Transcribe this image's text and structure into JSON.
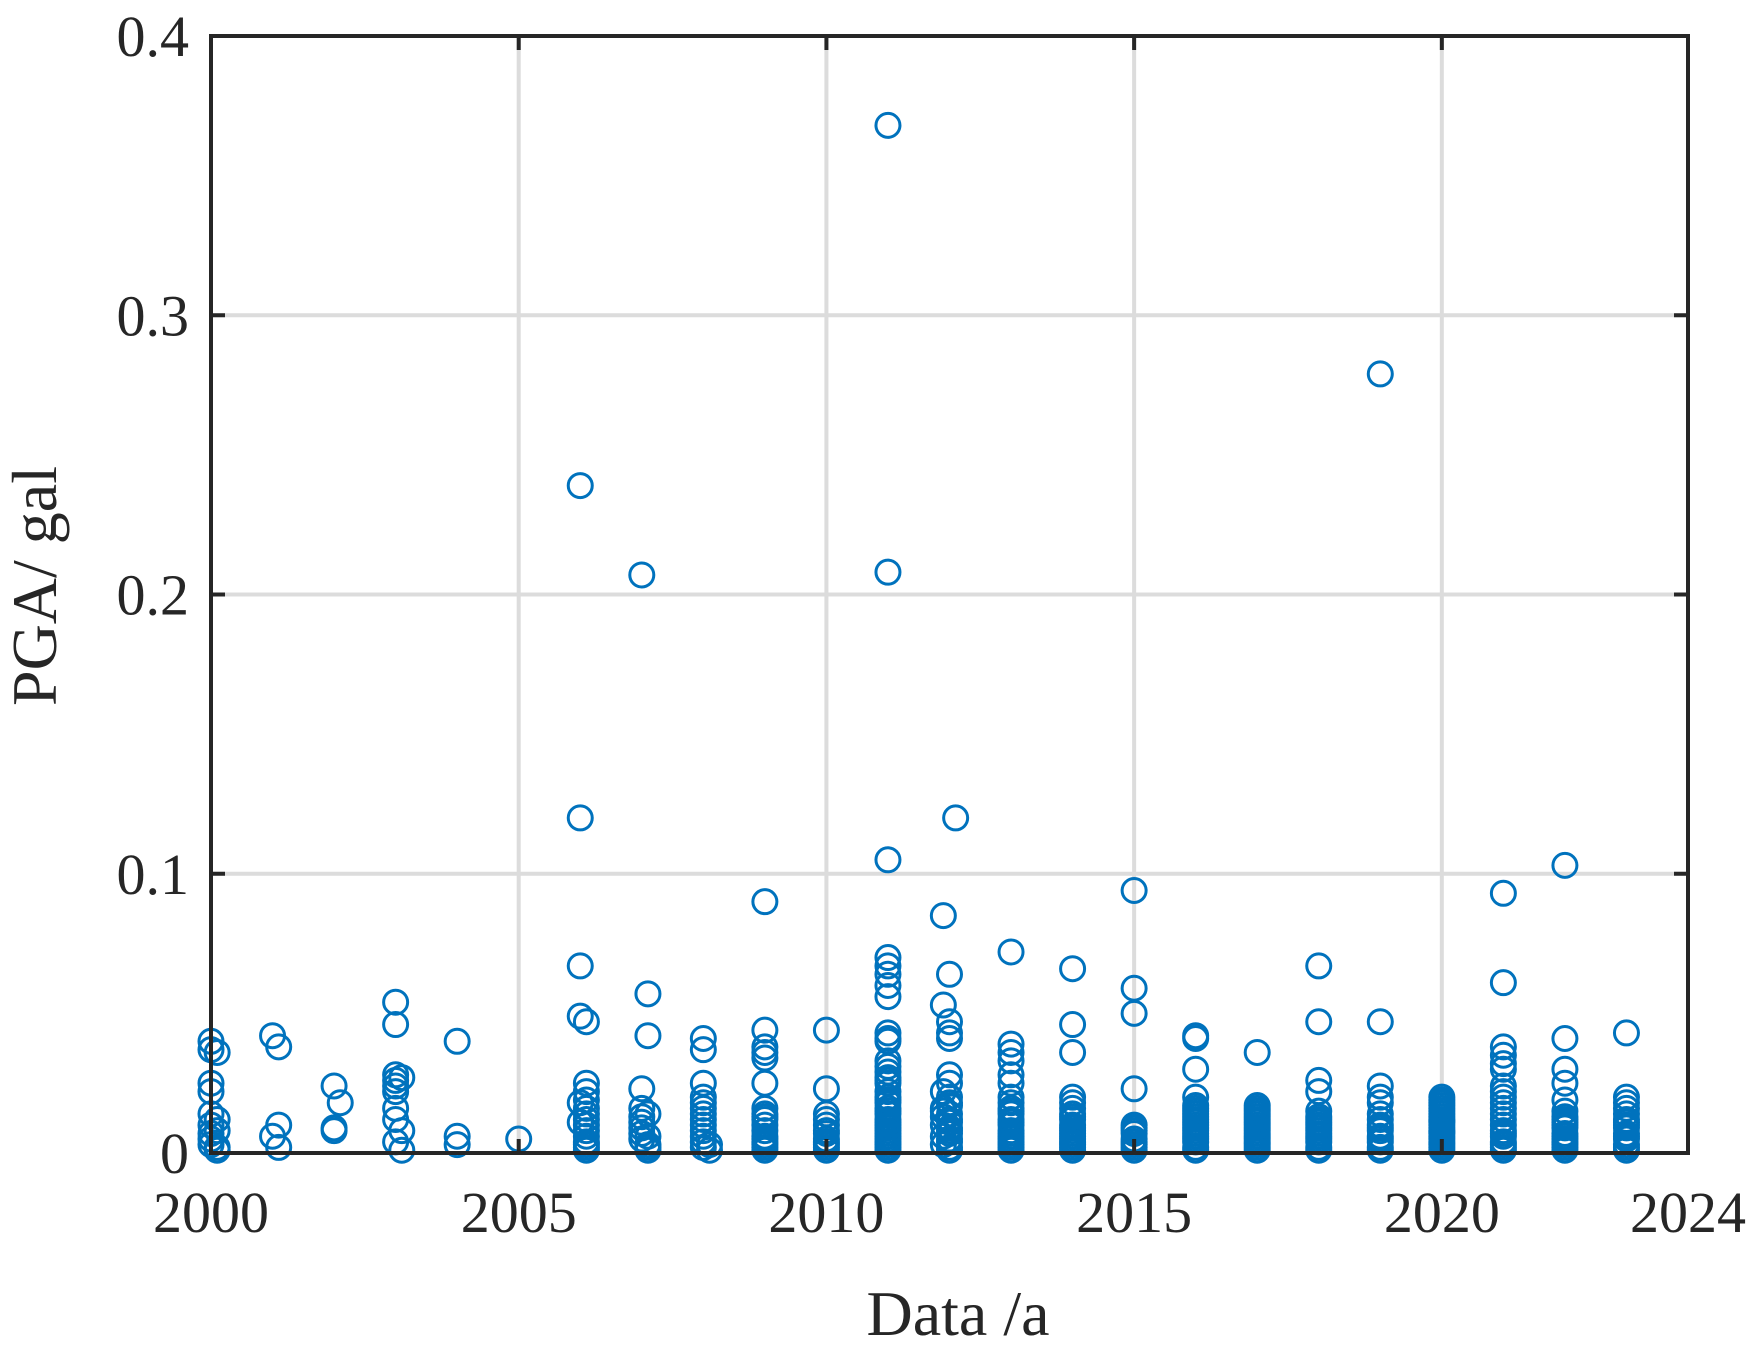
{
  "chart_data": {
    "type": "scatter",
    "xlabel": "Data /a",
    "ylabel": "PGA/ gal",
    "xlim": [
      2000,
      2024
    ],
    "ylim": [
      0,
      0.4
    ],
    "xticks": [
      "2000",
      "2005",
      "2010",
      "2015",
      "2020",
      "2024"
    ],
    "yticks": [
      "0",
      "0.1",
      "0.2",
      "0.3",
      "0.4"
    ],
    "grid": true,
    "marker": "open-circle",
    "marker_color": "#0072BD",
    "colors": {
      "axis": "#262626",
      "grid": "#DCDCDC",
      "background": "#ffffff"
    },
    "series": [
      {
        "x": [
          2000.0,
          2000.0,
          2000.0,
          2000.0,
          2000.0,
          2000.0,
          2000.0,
          2000.0,
          2000.0,
          2000.1,
          2000.1,
          2000.1,
          2000.1,
          2000.1,
          2001.0,
          2001.0,
          2001.1,
          2001.1,
          2001.1,
          2002.0,
          2002.0,
          2002.0,
          2002.1,
          2003.0,
          2003.0,
          2003.0,
          2003.0,
          2003.0,
          2003.0,
          2003.0,
          2003.0,
          2003.0,
          2003.1,
          2003.1,
          2003.1,
          2004.0,
          2004.0,
          2004.0,
          2005.0,
          2006.0,
          2006.0,
          2006.0,
          2006.0,
          2006.1,
          2006.1,
          2006.1,
          2006.1,
          2006.1,
          2006.1,
          2006.1,
          2006.1,
          2006.1,
          2006.1,
          2006.1,
          2006.1,
          2006.1,
          2006.1,
          2006.0,
          2006.0,
          2007.0,
          2007.1,
          2007.1,
          2007.0,
          2007.0,
          2007.0,
          2007.0,
          2007.0,
          2007.0,
          2007.0,
          2007.1,
          2007.1,
          2007.1,
          2007.1,
          2007.1,
          2008.0,
          2008.0,
          2008.0,
          2008.0,
          2008.0,
          2008.0,
          2008.0,
          2008.0,
          2008.0,
          2008.0,
          2008.0,
          2008.0,
          2008.0,
          2008.1,
          2008.1,
          2009.0,
          2009.0,
          2009.0,
          2009.0,
          2009.0,
          2009.0,
          2009.0,
          2009.0,
          2009.0,
          2009.0,
          2009.0,
          2009.0,
          2009.0,
          2009.0,
          2009.0,
          2009.0,
          2009.0,
          2009.0,
          2010.0,
          2010.0,
          2010.0,
          2010.0,
          2010.0,
          2010.0,
          2010.0,
          2010.0,
          2010.0,
          2010.0,
          2010.0,
          2010.0,
          2011.0,
          2011.0,
          2011.0,
          2011.0,
          2011.0,
          2011.0,
          2011.0,
          2011.0,
          2011.0,
          2011.0,
          2011.0,
          2011.0,
          2011.0,
          2011.0,
          2011.0,
          2011.0,
          2011.0,
          2011.0,
          2011.0,
          2011.0,
          2011.0,
          2011.0,
          2011.0,
          2011.0,
          2011.0,
          2011.0,
          2011.0,
          2011.0,
          2011.0,
          2011.0,
          2011.0,
          2011.0,
          2011.0,
          2011.0,
          2011.0,
          2011.0,
          2012.1,
          2011.9,
          2012.0,
          2011.9,
          2012.0,
          2012.0,
          2012.0,
          2012.0,
          2012.0,
          2011.9,
          2012.0,
          2012.0,
          2011.9,
          2012.0,
          2012.0,
          2011.9,
          2012.0,
          2012.0,
          2011.9,
          2012.0,
          2012.0,
          2011.9,
          2012.0,
          2012.0,
          2011.9,
          2012.0,
          2012.0,
          2011.9,
          2012.0,
          2013.0,
          2013.0,
          2013.0,
          2013.0,
          2013.0,
          2013.0,
          2013.0,
          2013.0,
          2013.0,
          2013.0,
          2013.0,
          2013.0,
          2013.0,
          2013.0,
          2013.0,
          2013.0,
          2013.0,
          2013.0,
          2013.0,
          2013.0,
          2013.0,
          2013.0,
          2014.0,
          2014.0,
          2014.0,
          2014.0,
          2014.0,
          2014.0,
          2014.0,
          2014.0,
          2014.0,
          2014.0,
          2014.0,
          2014.0,
          2014.0,
          2014.0,
          2014.0,
          2014.0,
          2014.0,
          2014.0,
          2014.0,
          2015.0,
          2015.0,
          2015.0,
          2015.0,
          2015.0,
          2015.0,
          2015.0,
          2015.0,
          2015.0,
          2015.0,
          2015.0,
          2015.0,
          2015.0,
          2016.0,
          2016.0,
          2016.0,
          2016.0,
          2016.0,
          2016.0,
          2016.0,
          2016.0,
          2016.0,
          2016.0,
          2016.0,
          2016.0,
          2016.0,
          2016.0,
          2016.0,
          2016.0,
          2016.0,
          2016.0,
          2016.0,
          2016.0,
          2017.0,
          2017.0,
          2017.0,
          2017.0,
          2017.0,
          2017.0,
          2017.0,
          2017.0,
          2017.0,
          2017.0,
          2017.0,
          2017.0,
          2017.0,
          2017.0,
          2017.0,
          2017.0,
          2017.0,
          2017.0,
          2018.0,
          2018.0,
          2018.0,
          2018.0,
          2018.0,
          2018.0,
          2018.0,
          2018.0,
          2018.0,
          2018.0,
          2018.0,
          2018.0,
          2018.0,
          2018.0,
          2018.0,
          2018.0,
          2018.0,
          2019.0,
          2019.0,
          2019.0,
          2019.0,
          2019.0,
          2019.0,
          2019.0,
          2019.0,
          2019.0,
          2019.0,
          2019.0,
          2019.0,
          2019.0,
          2019.0,
          2019.0,
          2020.0,
          2020.0,
          2020.0,
          2020.0,
          2020.0,
          2020.0,
          2020.0,
          2020.0,
          2020.0,
          2020.0,
          2020.0,
          2020.0,
          2020.0,
          2020.0,
          2020.0,
          2020.0,
          2020.0,
          2020.0,
          2020.0,
          2020.0,
          2020.0,
          2020.0,
          2021.0,
          2021.0,
          2021.0,
          2021.0,
          2021.0,
          2021.0,
          2021.0,
          2021.0,
          2021.0,
          2021.0,
          2021.0,
          2021.0,
          2021.0,
          2021.0,
          2021.0,
          2021.0,
          2021.0,
          2021.0,
          2021.0,
          2021.0,
          2021.0,
          2022.0,
          2022.0,
          2022.0,
          2022.0,
          2022.0,
          2022.0,
          2022.0,
          2022.0,
          2022.0,
          2022.0,
          2022.0,
          2022.0,
          2022.0,
          2022.0,
          2022.0,
          2022.0,
          2022.0,
          2022.0,
          2023.0,
          2023.0,
          2023.0,
          2023.0,
          2023.0,
          2023.0,
          2023.0,
          2023.0,
          2023.0,
          2023.0,
          2023.0,
          2023.0,
          2023.0,
          2023.0,
          2023.0
        ],
        "y": [
          0.04,
          0.037,
          0.025,
          0.022,
          0.014,
          0.01,
          0.007,
          0.005,
          0.003,
          0.036,
          0.012,
          0.008,
          0.002,
          0.001,
          0.042,
          0.006,
          0.038,
          0.01,
          0.002,
          0.024,
          0.009,
          0.008,
          0.018,
          0.054,
          0.046,
          0.028,
          0.026,
          0.024,
          0.022,
          0.016,
          0.012,
          0.004,
          0.027,
          0.008,
          0.001,
          0.04,
          0.006,
          0.003,
          0.005,
          0.239,
          0.12,
          0.049,
          0.067,
          0.047,
          0.025,
          0.022,
          0.019,
          0.016,
          0.014,
          0.012,
          0.01,
          0.008,
          0.006,
          0.004,
          0.003,
          0.002,
          0.001,
          0.018,
          0.011,
          0.207,
          0.057,
          0.042,
          0.023,
          0.016,
          0.013,
          0.011,
          0.009,
          0.007,
          0.005,
          0.003,
          0.002,
          0.014,
          0.006,
          0.001,
          0.041,
          0.037,
          0.025,
          0.02,
          0.018,
          0.016,
          0.014,
          0.012,
          0.01,
          0.008,
          0.006,
          0.004,
          0.002,
          0.001,
          0.003,
          0.09,
          0.044,
          0.038,
          0.036,
          0.034,
          0.025,
          0.016,
          0.014,
          0.013,
          0.012,
          0.01,
          0.008,
          0.006,
          0.005,
          0.004,
          0.003,
          0.002,
          0.001,
          0.044,
          0.023,
          0.014,
          0.012,
          0.01,
          0.008,
          0.007,
          0.005,
          0.004,
          0.003,
          0.002,
          0.001,
          0.368,
          0.208,
          0.105,
          0.07,
          0.067,
          0.064,
          0.06,
          0.056,
          0.043,
          0.041,
          0.04,
          0.033,
          0.031,
          0.029,
          0.027,
          0.025,
          0.022,
          0.02,
          0.018,
          0.016,
          0.014,
          0.012,
          0.01,
          0.008,
          0.006,
          0.005,
          0.004,
          0.003,
          0.002,
          0.001,
          0.015,
          0.011,
          0.009,
          0.007,
          0.026,
          0.019,
          0.12,
          0.085,
          0.064,
          0.053,
          0.047,
          0.043,
          0.041,
          0.028,
          0.025,
          0.022,
          0.02,
          0.018,
          0.016,
          0.014,
          0.012,
          0.01,
          0.008,
          0.007,
          0.006,
          0.005,
          0.004,
          0.003,
          0.002,
          0.001,
          0.013,
          0.011,
          0.009,
          0.015,
          0.017,
          0.072,
          0.039,
          0.036,
          0.033,
          0.028,
          0.025,
          0.02,
          0.018,
          0.016,
          0.014,
          0.012,
          0.01,
          0.008,
          0.007,
          0.006,
          0.005,
          0.004,
          0.003,
          0.002,
          0.001,
          0.015,
          0.011,
          0.066,
          0.046,
          0.036,
          0.02,
          0.018,
          0.016,
          0.014,
          0.012,
          0.01,
          0.009,
          0.008,
          0.007,
          0.006,
          0.005,
          0.004,
          0.003,
          0.002,
          0.001,
          0.013,
          0.094,
          0.059,
          0.05,
          0.023,
          0.01,
          0.009,
          0.008,
          0.007,
          0.005,
          0.004,
          0.003,
          0.002,
          0.001,
          0.042,
          0.041,
          0.03,
          0.02,
          0.017,
          0.016,
          0.015,
          0.014,
          0.013,
          0.012,
          0.011,
          0.01,
          0.009,
          0.008,
          0.007,
          0.006,
          0.005,
          0.004,
          0.002,
          0.001,
          0.036,
          0.017,
          0.016,
          0.015,
          0.014,
          0.013,
          0.012,
          0.011,
          0.01,
          0.009,
          0.008,
          0.007,
          0.006,
          0.005,
          0.004,
          0.003,
          0.002,
          0.001,
          0.067,
          0.047,
          0.026,
          0.022,
          0.015,
          0.013,
          0.012,
          0.011,
          0.01,
          0.009,
          0.008,
          0.007,
          0.006,
          0.005,
          0.004,
          0.002,
          0.001,
          0.279,
          0.047,
          0.024,
          0.02,
          0.018,
          0.014,
          0.012,
          0.01,
          0.009,
          0.008,
          0.006,
          0.005,
          0.004,
          0.002,
          0.001,
          0.02,
          0.019,
          0.018,
          0.017,
          0.016,
          0.015,
          0.014,
          0.013,
          0.012,
          0.011,
          0.01,
          0.009,
          0.008,
          0.007,
          0.006,
          0.005,
          0.004,
          0.003,
          0.002,
          0.001,
          0.0115,
          0.0075,
          0.093,
          0.061,
          0.038,
          0.035,
          0.032,
          0.03,
          0.024,
          0.022,
          0.02,
          0.018,
          0.016,
          0.014,
          0.012,
          0.01,
          0.008,
          0.007,
          0.006,
          0.004,
          0.003,
          0.002,
          0.001,
          0.103,
          0.041,
          0.03,
          0.025,
          0.019,
          0.015,
          0.013,
          0.012,
          0.011,
          0.01,
          0.009,
          0.007,
          0.006,
          0.005,
          0.004,
          0.003,
          0.002,
          0.001,
          0.043,
          0.02,
          0.018,
          0.016,
          0.014,
          0.012,
          0.011,
          0.01,
          0.009,
          0.007,
          0.006,
          0.005,
          0.003,
          0.002,
          0.001
        ]
      }
    ]
  }
}
